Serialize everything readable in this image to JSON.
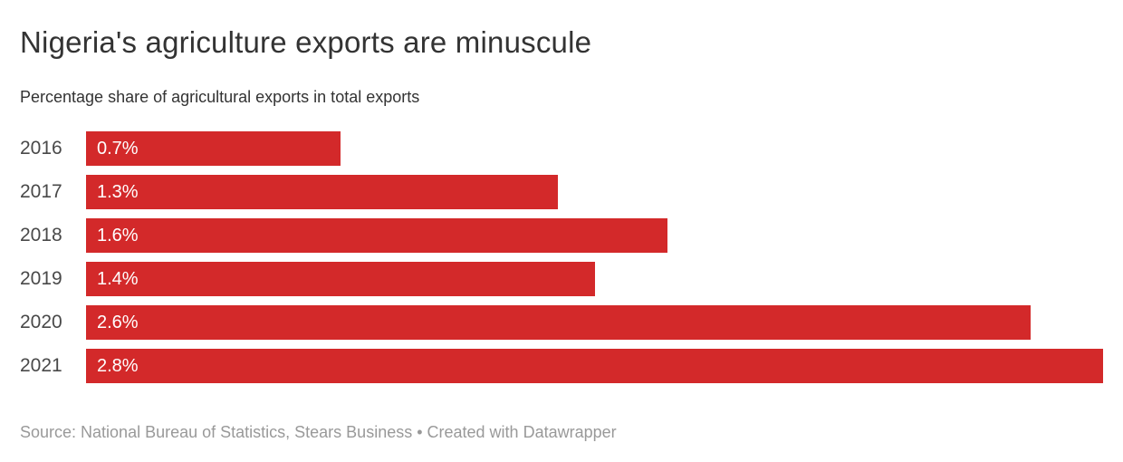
{
  "header": {
    "title": "Nigeria's agriculture exports are minuscule",
    "subtitle": "Percentage share of agricultural exports in total exports"
  },
  "footer": {
    "source_line": "Source: National Bureau of Statistics, Stears Business • Created with Datawrapper"
  },
  "chart_data": {
    "type": "bar",
    "orientation": "horizontal",
    "title": "Nigeria's agriculture exports are minuscule",
    "subtitle": "Percentage share of agricultural exports in total exports",
    "categories": [
      "2016",
      "2017",
      "2018",
      "2019",
      "2020",
      "2021"
    ],
    "values": [
      0.7,
      1.3,
      1.6,
      1.4,
      2.6,
      2.8
    ],
    "value_labels": [
      "0.7%",
      "1.3%",
      "1.6%",
      "1.4%",
      "2.6%",
      "2.8%"
    ],
    "xlabel": "",
    "ylabel": "",
    "xlim": [
      0,
      2.8
    ],
    "grid": false,
    "legend": false,
    "value_label_position": "inside-start",
    "colors": {
      "bar": "#d3292a",
      "value_label": "#ffffff",
      "category_label": "#494949",
      "title": "#333333",
      "subtitle": "#333333",
      "source": "#999999",
      "background": "#ffffff"
    }
  }
}
